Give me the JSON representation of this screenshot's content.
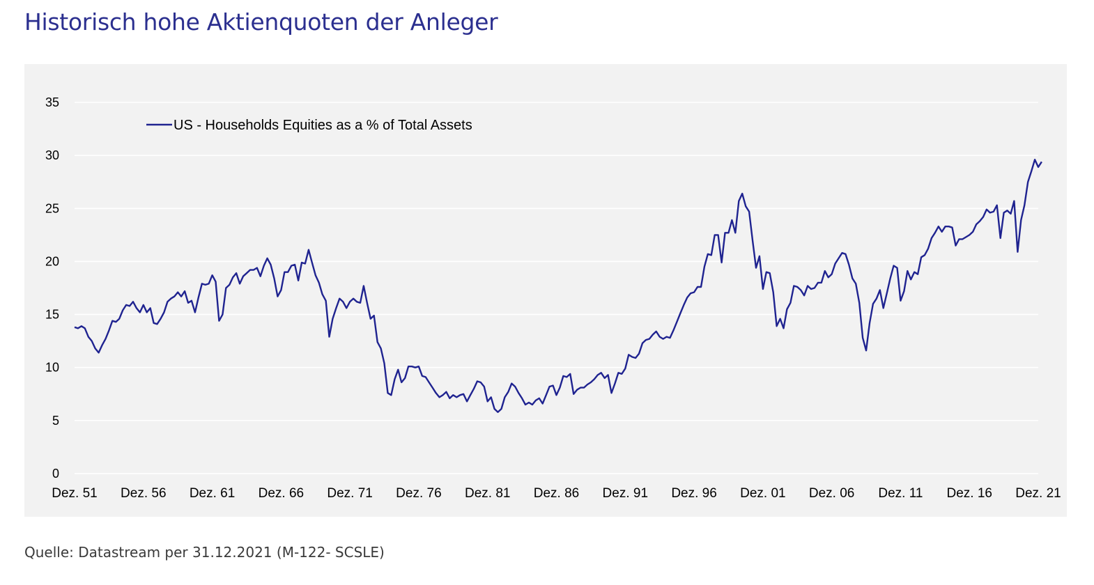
{
  "page": {
    "title": "Historisch hohe Aktienquoten der Anleger",
    "source": "Quelle: Datastream per 31.12.2021 (M-122- SCSLE)"
  },
  "chart_data": {
    "type": "line",
    "title": "",
    "xlabel": "",
    "ylabel": "",
    "ylim": [
      0,
      35
    ],
    "yticks": [
      0,
      5,
      10,
      15,
      20,
      25,
      30,
      35
    ],
    "xlim": [
      1951,
      2021
    ],
    "xticks": [
      {
        "x": 1951,
        "label": "Dez. 51"
      },
      {
        "x": 1956,
        "label": "Dez. 56"
      },
      {
        "x": 1961,
        "label": "Dez. 61"
      },
      {
        "x": 1966,
        "label": "Dez. 66"
      },
      {
        "x": 1971,
        "label": "Dez. 71"
      },
      {
        "x": 1976,
        "label": "Dez. 76"
      },
      {
        "x": 1981,
        "label": "Dez. 81"
      },
      {
        "x": 1986,
        "label": "Dez. 86"
      },
      {
        "x": 1991,
        "label": "Dez. 91"
      },
      {
        "x": 1996,
        "label": "Dez. 96"
      },
      {
        "x": 2001,
        "label": "Dez. 01"
      },
      {
        "x": 2006,
        "label": "Dez. 06"
      },
      {
        "x": 2011,
        "label": "Dez. 11"
      },
      {
        "x": 2016,
        "label": "Dez. 16"
      },
      {
        "x": 2021,
        "label": "Dez. 21"
      }
    ],
    "grid": {
      "horizontal": true,
      "vertical": false
    },
    "legend_position": "top-left",
    "series": [
      {
        "name": "US - Households Equities as a % of Total Assets",
        "color": "#1f2390",
        "x": [
          1951,
          1951.25,
          1951.5,
          1951.75,
          1952,
          1952.25,
          1952.5,
          1952.75,
          1953,
          1953.25,
          1953.5,
          1953.75,
          1954,
          1954.25,
          1954.5,
          1954.75,
          1955,
          1955.25,
          1955.5,
          1955.75,
          1956,
          1956.25,
          1956.5,
          1956.75,
          1957,
          1957.25,
          1957.5,
          1957.75,
          1958,
          1958.25,
          1958.5,
          1958.75,
          1959,
          1959.25,
          1959.5,
          1959.75,
          1960,
          1960.25,
          1960.5,
          1960.75,
          1961,
          1961.25,
          1961.5,
          1961.75,
          1962,
          1962.25,
          1962.5,
          1962.75,
          1963,
          1963.25,
          1963.5,
          1963.75,
          1964,
          1964.25,
          1964.5,
          1964.75,
          1965,
          1965.25,
          1965.5,
          1965.75,
          1966,
          1966.25,
          1966.5,
          1966.75,
          1967,
          1967.25,
          1967.5,
          1967.75,
          1968,
          1968.25,
          1968.5,
          1968.75,
          1969,
          1969.25,
          1969.5,
          1969.75,
          1970,
          1970.25,
          1970.5,
          1970.75,
          1971,
          1971.25,
          1971.5,
          1971.75,
          1972,
          1972.25,
          1972.5,
          1972.75,
          1973,
          1973.25,
          1973.5,
          1973.75,
          1974,
          1974.25,
          1974.5,
          1974.75,
          1975,
          1975.25,
          1975.5,
          1975.75,
          1976,
          1976.25,
          1976.5,
          1976.75,
          1977,
          1977.25,
          1977.5,
          1977.75,
          1978,
          1978.25,
          1978.5,
          1978.75,
          1979,
          1979.25,
          1979.5,
          1979.75,
          1980,
          1980.25,
          1980.5,
          1980.75,
          1981,
          1981.25,
          1981.5,
          1981.75,
          1982,
          1982.25,
          1982.5,
          1982.75,
          1983,
          1983.25,
          1983.5,
          1983.75,
          1984,
          1984.25,
          1984.5,
          1984.75,
          1985,
          1985.25,
          1985.5,
          1985.75,
          1986,
          1986.25,
          1986.5,
          1986.75,
          1987,
          1987.25,
          1987.5,
          1987.75,
          1988,
          1988.25,
          1988.5,
          1988.75,
          1989,
          1989.25,
          1989.5,
          1989.75,
          1990,
          1990.25,
          1990.5,
          1990.75,
          1991,
          1991.25,
          1991.5,
          1991.75,
          1992,
          1992.25,
          1992.5,
          1992.75,
          1993,
          1993.25,
          1993.5,
          1993.75,
          1994,
          1994.25,
          1994.5,
          1994.75,
          1995,
          1995.25,
          1995.5,
          1995.75,
          1996,
          1996.25,
          1996.5,
          1996.75,
          1997,
          1997.25,
          1997.5,
          1997.75,
          1998,
          1998.25,
          1998.5,
          1998.75,
          1999,
          1999.25,
          1999.5,
          1999.75,
          2000,
          2000.25,
          2000.5,
          2000.75,
          2001,
          2001.25,
          2001.5,
          2001.75,
          2002,
          2002.25,
          2002.5,
          2002.75,
          2003,
          2003.25,
          2003.5,
          2003.75,
          2004,
          2004.25,
          2004.5,
          2004.75,
          2005,
          2005.25,
          2005.5,
          2005.75,
          2006,
          2006.25,
          2006.5,
          2006.75,
          2007,
          2007.25,
          2007.5,
          2007.75,
          2008,
          2008.25,
          2008.5,
          2008.75,
          2009,
          2009.25,
          2009.5,
          2009.75,
          2010,
          2010.25,
          2010.5,
          2010.75,
          2011,
          2011.25,
          2011.5,
          2011.75,
          2012,
          2012.25,
          2012.5,
          2012.75,
          2013,
          2013.25,
          2013.5,
          2013.75,
          2014,
          2014.25,
          2014.5,
          2014.75,
          2015,
          2015.25,
          2015.5,
          2015.75,
          2016,
          2016.25,
          2016.5,
          2016.75,
          2017,
          2017.25,
          2017.5,
          2017.75,
          2018,
          2018.25,
          2018.5,
          2018.75,
          2019,
          2019.25,
          2019.5,
          2019.75,
          2020,
          2020.25,
          2020.5,
          2020.75,
          2021,
          2021.25
        ],
        "values": [
          13.8,
          13.7,
          13.9,
          13.7,
          12.9,
          12.5,
          11.8,
          11.4,
          12.1,
          12.7,
          13.5,
          14.4,
          14.3,
          14.6,
          15.4,
          15.9,
          15.8,
          16.2,
          15.6,
          15.2,
          15.9,
          15.2,
          15.6,
          14.2,
          14.1,
          14.6,
          15.2,
          16.2,
          16.5,
          16.7,
          17.1,
          16.7,
          17.2,
          16.1,
          16.3,
          15.2,
          16.6,
          17.9,
          17.8,
          17.9,
          18.7,
          18.1,
          14.4,
          15.0,
          17.5,
          17.8,
          18.5,
          18.9,
          17.9,
          18.6,
          18.9,
          19.2,
          19.2,
          19.4,
          18.6,
          19.6,
          20.3,
          19.7,
          18.4,
          16.7,
          17.3,
          19.0,
          19.0,
          19.6,
          19.7,
          18.2,
          19.9,
          19.8,
          21.1,
          19.9,
          18.7,
          18.0,
          16.9,
          16.3,
          12.9,
          14.6,
          15.6,
          16.5,
          16.2,
          15.6,
          16.2,
          16.5,
          16.2,
          16.1,
          17.7,
          16.1,
          14.6,
          14.9,
          12.4,
          11.8,
          10.4,
          7.6,
          7.4,
          8.9,
          9.8,
          8.6,
          9.0,
          10.1,
          10.1,
          10.0,
          10.1,
          9.2,
          9.1,
          8.6,
          8.1,
          7.6,
          7.2,
          7.4,
          7.7,
          7.1,
          7.4,
          7.2,
          7.4,
          7.5,
          6.8,
          7.4,
          8.0,
          8.7,
          8.6,
          8.2,
          6.8,
          7.2,
          6.1,
          5.8,
          6.1,
          7.2,
          7.7,
          8.5,
          8.2,
          7.6,
          7.1,
          6.5,
          6.7,
          6.5,
          6.9,
          7.1,
          6.6,
          7.4,
          8.2,
          8.3,
          7.4,
          8.1,
          9.2,
          9.1,
          9.4,
          7.5,
          7.9,
          8.1,
          8.1,
          8.4,
          8.6,
          8.9,
          9.3,
          9.5,
          9.0,
          9.3,
          7.6,
          8.5,
          9.5,
          9.4,
          9.9,
          11.2,
          11.0,
          10.9,
          11.3,
          12.3,
          12.6,
          12.7,
          13.1,
          13.4,
          12.9,
          12.7,
          12.9,
          12.8,
          13.5,
          14.3,
          15.1,
          15.9,
          16.6,
          17.0,
          17.1,
          17.6,
          17.6,
          19.5,
          20.7,
          20.6,
          22.5,
          22.5,
          19.9,
          22.7,
          22.7,
          23.9,
          22.7,
          25.7,
          26.4,
          25.2,
          24.7,
          22.0,
          19.4,
          20.5,
          17.4,
          19.0,
          18.9,
          17.1,
          13.9,
          14.6,
          13.7,
          15.5,
          16.1,
          17.7,
          17.6,
          17.3,
          16.8,
          17.7,
          17.4,
          17.5,
          18.0,
          18.0,
          19.1,
          18.5,
          18.8,
          19.8,
          20.3,
          20.8,
          20.7,
          19.7,
          18.4,
          17.9,
          16.1,
          12.8,
          11.6,
          14.2,
          16.0,
          16.5,
          17.3,
          15.6,
          17.0,
          18.4,
          19.6,
          19.4,
          16.3,
          17.2,
          19.1,
          18.3,
          19.0,
          18.8,
          20.4,
          20.6,
          21.2,
          22.2,
          22.7,
          23.3,
          22.8,
          23.3,
          23.3,
          23.2,
          21.5,
          22.1,
          22.1,
          22.3,
          22.5,
          22.8,
          23.5,
          23.8,
          24.2,
          24.9,
          24.6,
          24.7,
          25.3,
          22.2,
          24.6,
          24.8,
          24.5,
          25.7,
          20.9,
          23.9,
          25.3,
          27.5,
          28.5,
          29.6,
          28.9,
          29.4
        ]
      }
    ]
  }
}
